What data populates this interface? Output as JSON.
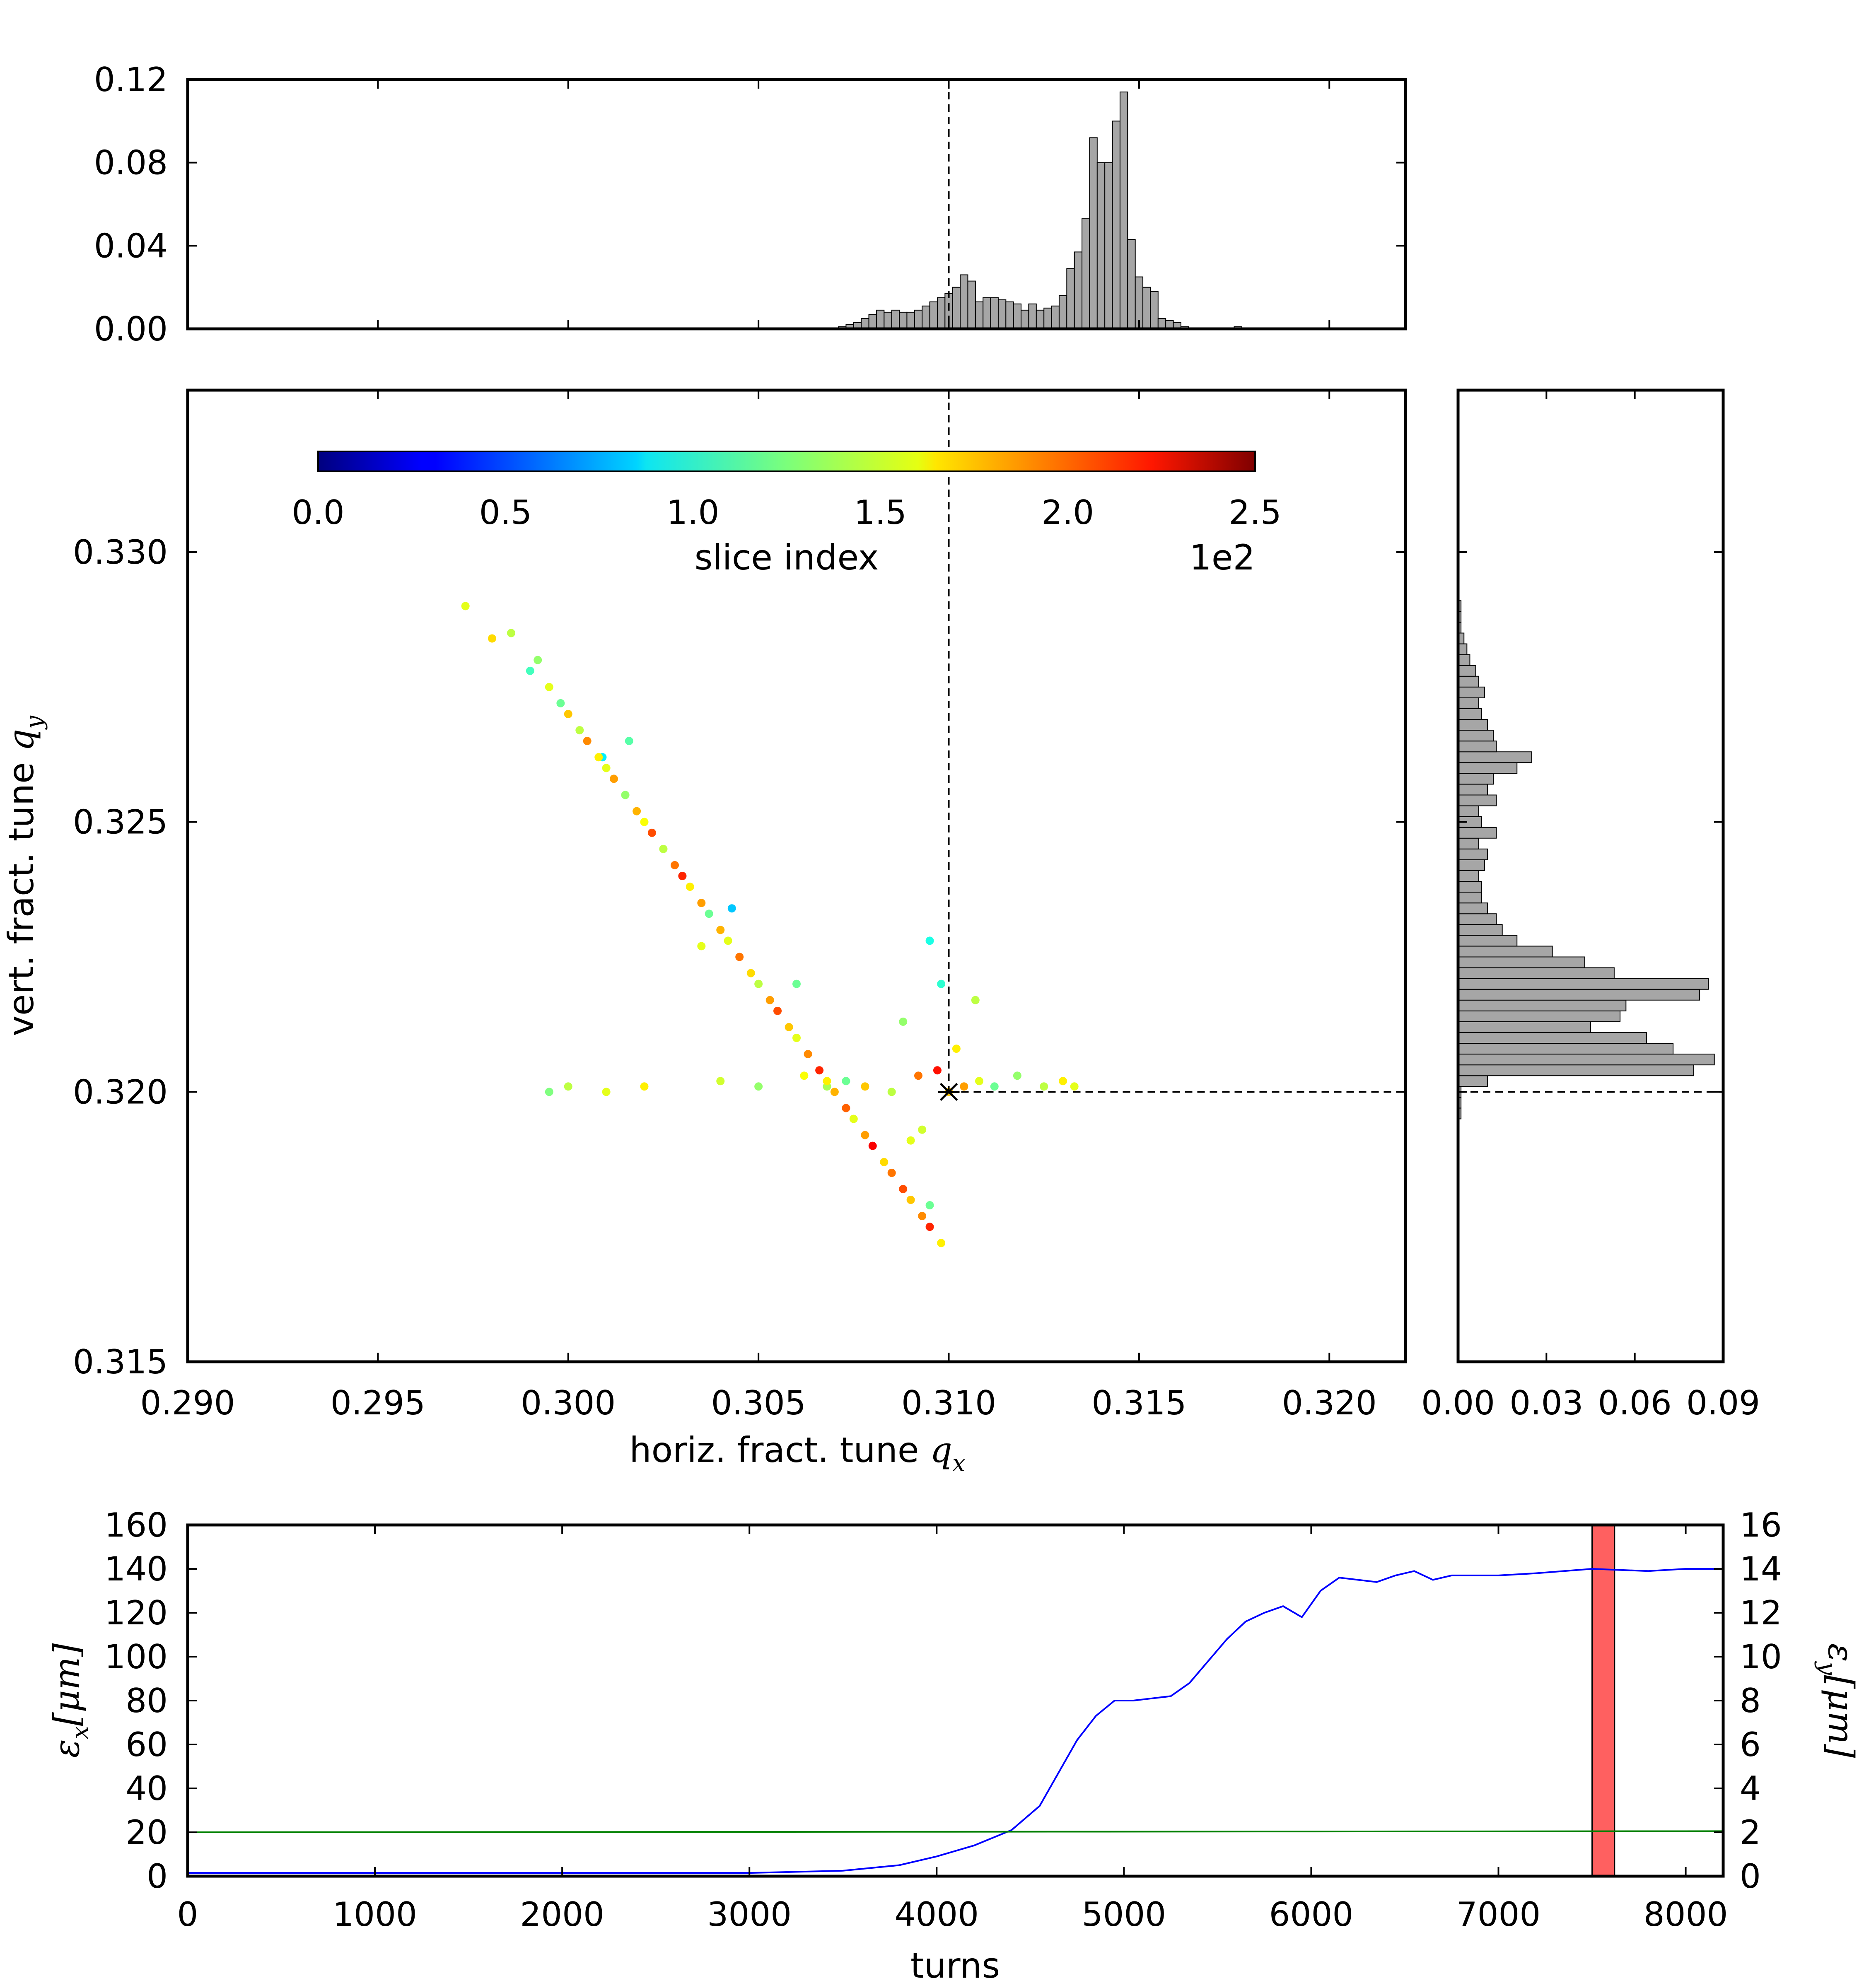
{
  "chart_data": [
    {
      "type": "bar",
      "panel": "top-histogram",
      "xlim": [
        0.29,
        0.322
      ],
      "ylim": [
        0,
        0.12
      ],
      "yticks": [
        "0.00",
        "0.04",
        "0.08",
        "0.12"
      ],
      "bin_start": 0.2975,
      "bin_width": 0.0002,
      "values": [
        0,
        0,
        0,
        0,
        0,
        0,
        0,
        0,
        0,
        0,
        0,
        0,
        0,
        0,
        0,
        0,
        0,
        0,
        0,
        0,
        0,
        0,
        0,
        0,
        0,
        0,
        0,
        0,
        0,
        0,
        0,
        0,
        0,
        0,
        0,
        0,
        0,
        0,
        0,
        0,
        0,
        0,
        0,
        0,
        0,
        0,
        0,
        0,
        0.001,
        0.002,
        0.003,
        0.005,
        0.007,
        0.009,
        0.008,
        0.009,
        0.008,
        0.008,
        0.009,
        0.011,
        0.013,
        0.015,
        0.017,
        0.02,
        0.026,
        0.023,
        0.013,
        0.015,
        0.015,
        0.014,
        0.013,
        0.012,
        0.009,
        0.012,
        0.009,
        0.01,
        0.011,
        0.016,
        0.029,
        0.037,
        0.053,
        0.092,
        0.08,
        0.08,
        0.1,
        0.114,
        0.043,
        0.025,
        0.02,
        0.018,
        0.005,
        0.004,
        0.003,
        0.001,
        0,
        0,
        0,
        0,
        0,
        0,
        0.001
      ],
      "ref_x": 0.31,
      "color": "#a6a6a6"
    },
    {
      "type": "scatter",
      "panel": "main",
      "xlabel": "horiz. fract. tune",
      "ylabel": "vert. fract. tune",
      "xlabel_math": "q",
      "xlabel_sub": "x",
      "ylabel_math": "q",
      "ylabel_sub": "y",
      "xlim": [
        0.29,
        0.322
      ],
      "ylim": [
        0.315,
        0.333
      ],
      "xticks": [
        "0.290",
        "0.295",
        "0.300",
        "0.305",
        "0.310",
        "0.315",
        "0.320"
      ],
      "yticks": [
        "0.315",
        "0.320",
        "0.325",
        "0.330"
      ],
      "ref_point": [
        0.31,
        0.32
      ],
      "colormap": "jet",
      "c_range": [
        0,
        250
      ],
      "colorbar_label": "slice index",
      "colorbar_ticks": [
        "0.0",
        "0.5",
        "1.0",
        "1.5",
        "2.0",
        "2.5"
      ],
      "colorbar_multiplier": "1e2",
      "points_columns": [
        "x",
        "y",
        "slice"
      ],
      "points": [
        [
          0.2973,
          0.329,
          150
        ],
        [
          0.2985,
          0.3285,
          140
        ],
        [
          0.298,
          0.3284,
          165
        ],
        [
          0.2992,
          0.328,
          130
        ],
        [
          0.299,
          0.3278,
          110
        ],
        [
          0.2995,
          0.3275,
          150
        ],
        [
          0.2998,
          0.3272,
          120
        ],
        [
          0.3,
          0.327,
          170
        ],
        [
          0.3003,
          0.3267,
          140
        ],
        [
          0.3005,
          0.3265,
          185
        ],
        [
          0.3008,
          0.3262,
          160
        ],
        [
          0.301,
          0.326,
          150
        ],
        [
          0.3012,
          0.3258,
          180
        ],
        [
          0.3015,
          0.3255,
          130
        ],
        [
          0.3018,
          0.3252,
          175
        ],
        [
          0.302,
          0.325,
          155
        ],
        [
          0.3022,
          0.3248,
          200
        ],
        [
          0.3025,
          0.3245,
          140
        ],
        [
          0.3028,
          0.3242,
          190
        ],
        [
          0.303,
          0.324,
          210
        ],
        [
          0.3032,
          0.3238,
          160
        ],
        [
          0.3035,
          0.3235,
          180
        ],
        [
          0.3037,
          0.3233,
          120
        ],
        [
          0.304,
          0.323,
          175
        ],
        [
          0.3042,
          0.3228,
          150
        ],
        [
          0.3045,
          0.3225,
          190
        ],
        [
          0.3048,
          0.3222,
          165
        ],
        [
          0.305,
          0.322,
          140
        ],
        [
          0.3053,
          0.3217,
          180
        ],
        [
          0.3055,
          0.3215,
          200
        ],
        [
          0.3058,
          0.3212,
          170
        ],
        [
          0.306,
          0.321,
          150
        ],
        [
          0.3063,
          0.3207,
          185
        ],
        [
          0.3066,
          0.3204,
          210
        ],
        [
          0.3068,
          0.3202,
          160
        ],
        [
          0.307,
          0.32,
          175
        ],
        [
          0.3073,
          0.3197,
          195
        ],
        [
          0.3075,
          0.3195,
          150
        ],
        [
          0.3078,
          0.3192,
          180
        ],
        [
          0.308,
          0.319,
          220
        ],
        [
          0.3083,
          0.3187,
          165
        ],
        [
          0.3085,
          0.3185,
          190
        ],
        [
          0.3088,
          0.3182,
          200
        ],
        [
          0.309,
          0.318,
          170
        ],
        [
          0.3093,
          0.3177,
          185
        ],
        [
          0.3095,
          0.3175,
          210
        ],
        [
          0.3098,
          0.3172,
          160
        ],
        [
          0.31,
          0.32,
          170
        ],
        [
          0.3092,
          0.3203,
          190
        ],
        [
          0.3097,
          0.3204,
          215
        ],
        [
          0.3104,
          0.3201,
          180
        ],
        [
          0.3108,
          0.3202,
          150
        ],
        [
          0.3112,
          0.3201,
          120
        ],
        [
          0.3118,
          0.3203,
          130
        ],
        [
          0.3125,
          0.3201,
          140
        ],
        [
          0.313,
          0.3202,
          160
        ],
        [
          0.3133,
          0.3201,
          150
        ],
        [
          0.3085,
          0.32,
          140
        ],
        [
          0.3078,
          0.3201,
          170
        ],
        [
          0.3073,
          0.3202,
          120
        ],
        [
          0.3068,
          0.3201,
          135
        ],
        [
          0.3062,
          0.3203,
          155
        ],
        [
          0.305,
          0.3201,
          130
        ],
        [
          0.304,
          0.3202,
          145
        ],
        [
          0.302,
          0.3201,
          160
        ],
        [
          0.301,
          0.32,
          150
        ],
        [
          0.3,
          0.3201,
          140
        ],
        [
          0.2995,
          0.32,
          125
        ],
        [
          0.3093,
          0.3193,
          145
        ],
        [
          0.309,
          0.3191,
          150
        ],
        [
          0.3095,
          0.3179,
          120
        ],
        [
          0.3102,
          0.3208,
          160
        ],
        [
          0.3107,
          0.3217,
          140
        ],
        [
          0.3095,
          0.3228,
          100
        ],
        [
          0.3098,
          0.322,
          105
        ],
        [
          0.3035,
          0.3227,
          150
        ],
        [
          0.3088,
          0.3213,
          130
        ],
        [
          0.306,
          0.322,
          120
        ],
        [
          0.303,
          0.324,
          100
        ],
        [
          0.3016,
          0.3265,
          115
        ],
        [
          0.3009,
          0.3262,
          90
        ],
        [
          0.3043,
          0.3234,
          80
        ]
      ]
    },
    {
      "type": "bar",
      "panel": "right-histogram",
      "orientation": "horizontal",
      "ylim": [
        0.315,
        0.333
      ],
      "xlim": [
        0,
        0.09
      ],
      "xticks": [
        "0.00",
        "0.03",
        "0.06",
        "0.09"
      ],
      "bin_start": 0.3195,
      "bin_width": 0.0002,
      "values": [
        0.001,
        0.001,
        0.001,
        0.01,
        0.08,
        0.087,
        0.073,
        0.064,
        0.045,
        0.055,
        0.057,
        0.082,
        0.085,
        0.053,
        0.043,
        0.032,
        0.02,
        0.015,
        0.013,
        0.01,
        0.008,
        0.008,
        0.007,
        0.009,
        0.01,
        0.007,
        0.013,
        0.008,
        0.007,
        0.013,
        0.01,
        0.012,
        0.02,
        0.025,
        0.013,
        0.012,
        0.01,
        0.008,
        0.007,
        0.009,
        0.007,
        0.006,
        0.004,
        0.003,
        0.002,
        0.001,
        0.001,
        0.001
      ],
      "ref_y": 0.32,
      "color": "#a6a6a6"
    },
    {
      "type": "line",
      "panel": "emittance",
      "xlabel": "turns",
      "ylabel_left_math": "ε",
      "ylabel_left_sub": "x",
      "ylabel_left_unit": "[μm]",
      "ylabel_right_math": "ε",
      "ylabel_right_sub": "y",
      "ylabel_right_unit": "[μm]",
      "xlim": [
        0,
        8200
      ],
      "ylim_left": [
        0,
        160
      ],
      "ylim_right": [
        0,
        16
      ],
      "xticks": [
        "0",
        "1000",
        "2000",
        "3000",
        "4000",
        "5000",
        "6000",
        "7000",
        "8000"
      ],
      "yticks_left": [
        "0",
        "20",
        "40",
        "60",
        "80",
        "100",
        "120",
        "140",
        "160"
      ],
      "yticks_right": [
        "0",
        "2",
        "4",
        "6",
        "8",
        "10",
        "12",
        "14",
        "16"
      ],
      "series": [
        {
          "axis": "left",
          "color": "#0000ff",
          "x": [
            0,
            1000,
            2000,
            3000,
            3500,
            3800,
            4000,
            4200,
            4400,
            4550,
            4650,
            4750,
            4850,
            4950,
            5050,
            5150,
            5250,
            5350,
            5450,
            5550,
            5650,
            5750,
            5850,
            5950,
            6050,
            6150,
            6250,
            6350,
            6450,
            6550,
            6650,
            6750,
            6850,
            7000,
            7200,
            7500,
            7800,
            8000,
            8200
          ],
          "y": [
            1.5,
            1.5,
            1.5,
            1.5,
            2.5,
            5,
            9,
            14,
            21,
            32,
            47,
            62,
            73,
            80,
            80,
            81,
            82,
            88,
            98,
            108,
            116,
            120,
            123,
            118,
            130,
            136,
            135,
            134,
            137,
            139,
            135,
            137,
            137,
            137,
            138,
            140,
            139,
            140,
            140
          ]
        },
        {
          "axis": "right",
          "color": "#008000",
          "x": [
            0,
            8200
          ],
          "y": [
            2.0,
            2.05
          ]
        }
      ],
      "highlight_span": [
        7500,
        7620
      ],
      "highlight_color": "#ff6060"
    }
  ]
}
